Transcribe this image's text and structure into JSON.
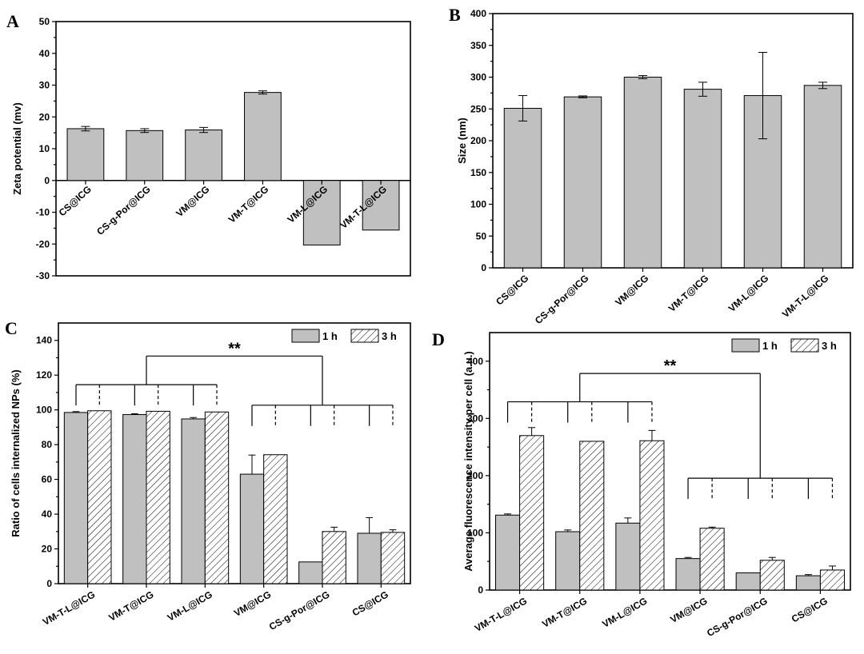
{
  "colors": {
    "bar_fill": "#c0c0c0",
    "axis": "#000000",
    "hatch": "#000000",
    "background": "#ffffff"
  },
  "chart_data": [
    {
      "panel": "A",
      "type": "bar",
      "categories": [
        "CS@ICG",
        "CS-g-Por@ICG",
        "VM@ICG",
        "VM-T@ICG",
        "VM-L@ICG",
        "VM-T-L@ICG"
      ],
      "values": [
        16.3,
        15.7,
        15.9,
        27.7,
        -20.3,
        -15.6
      ],
      "errors": [
        0.7,
        0.6,
        0.8,
        0.5,
        0,
        0
      ],
      "ylabel": "Zeta potential (mv)",
      "ylim": [
        -30,
        50
      ],
      "yticks": [
        -30,
        -20,
        -10,
        0,
        10,
        20,
        30,
        40,
        50
      ],
      "category_labels_at_zero": true
    },
    {
      "panel": "B",
      "type": "bar",
      "categories": [
        "CS@ICG",
        "CS-g-Por@ICG",
        "VM@ICG",
        "VM-T@ICG",
        "VM-L@ICG",
        "VM-T-L@ICG"
      ],
      "values": [
        251,
        269,
        300,
        281,
        271,
        287
      ],
      "errors": [
        20,
        1.5,
        2.5,
        11,
        68,
        5
      ],
      "ylabel": "Size (nm)",
      "ylim": [
        0,
        400
      ],
      "yticks": [
        0,
        50,
        100,
        150,
        200,
        250,
        300,
        350,
        400
      ]
    },
    {
      "panel": "C",
      "type": "bar",
      "categories": [
        "VM-T-L@ICG",
        "VM-T@ICG",
        "VM-L@ICG",
        "VM@ICG",
        "CS-g-Por@ICG",
        "CS@ICG"
      ],
      "series": [
        {
          "name": "1 h",
          "values": [
            98.5,
            97.3,
            94.8,
            63,
            12.5,
            29
          ],
          "errors": [
            0.5,
            0.5,
            0.8,
            11,
            0,
            9
          ]
        },
        {
          "name": "3 h",
          "values": [
            99.5,
            99.2,
            98.8,
            74.2,
            30,
            29.5
          ],
          "errors": [
            0,
            0,
            0,
            0,
            2.5,
            1.5
          ]
        }
      ],
      "ylabel": "Ratio of cells internalized NPs (%)",
      "ylim": [
        0,
        150
      ],
      "yticks": [
        0,
        20,
        40,
        60,
        80,
        100,
        120,
        140
      ],
      "legend": "top-right",
      "annotation": "**"
    },
    {
      "panel": "D",
      "type": "bar",
      "categories": [
        "VM-T-L@ICG",
        "VM-T@ICG",
        "VM-L@ICG",
        "VM@ICG",
        "CS-g-Por@ICG",
        "CS@ICG"
      ],
      "series": [
        {
          "name": "1 h",
          "values": [
            131,
            102,
            117,
            55,
            30,
            25
          ],
          "errors": [
            2,
            3,
            9,
            2,
            0,
            2
          ]
        },
        {
          "name": "3 h",
          "values": [
            270,
            260,
            261,
            108,
            52,
            35
          ],
          "errors": [
            14,
            0,
            18,
            2,
            5,
            7
          ]
        }
      ],
      "ylabel": "Average fluorescence intensity per cell (a.u.)",
      "ylim": [
        0,
        450
      ],
      "yticks": [
        0,
        100,
        200,
        300,
        400
      ],
      "legend": "top-right",
      "annotation": "**"
    }
  ]
}
